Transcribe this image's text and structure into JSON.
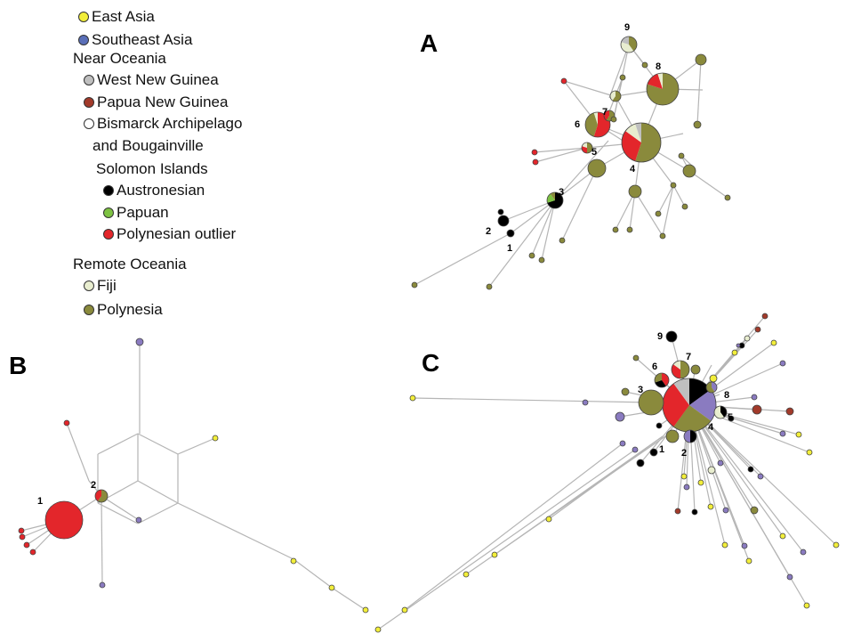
{
  "legend": {
    "east_asia": "East Asia",
    "southeast_asia": "Southeast Asia",
    "near_oceania": "Near Oceania",
    "west_new_guinea": "West New Guinea",
    "papua_new_guinea": "Papua New Guinea",
    "bismarck_line1": "Bismarck Archipelago",
    "bismarck_line2": "and Bougainville",
    "solomon_islands": "Solomon Islands",
    "austronesian": "Austronesian",
    "papuan": "Papuan",
    "polynesian_outlier": "Polynesian outlier",
    "remote_oceania": "Remote Oceania",
    "fiji": "Fiji",
    "polynesia": "Polynesia"
  },
  "colors": {
    "east_asia": "#f2ee3a",
    "southeast_asia": "#8a7bc0",
    "west_new_guinea": "#bfbfbf",
    "papua_new_guinea": "#a23a2a",
    "bismarck": "#ffffff",
    "austronesian": "#000000",
    "papuan": "#7dc242",
    "polynesian_outlier": "#e3262b",
    "fiji": "#e8edcf",
    "polynesia": "#8a8a3c",
    "edge": "#b5b5b5"
  },
  "panels": {
    "a": {
      "label": "A",
      "node_labels": [
        "1",
        "2",
        "3",
        "4",
        "5",
        "6",
        "7",
        "8",
        "9"
      ]
    },
    "b": {
      "label": "B",
      "node_labels": [
        "1",
        "2"
      ]
    },
    "c": {
      "label": "C",
      "node_labels": [
        "1",
        "2",
        "3",
        "4",
        "5",
        "6",
        "7",
        "8",
        "9"
      ]
    }
  }
}
